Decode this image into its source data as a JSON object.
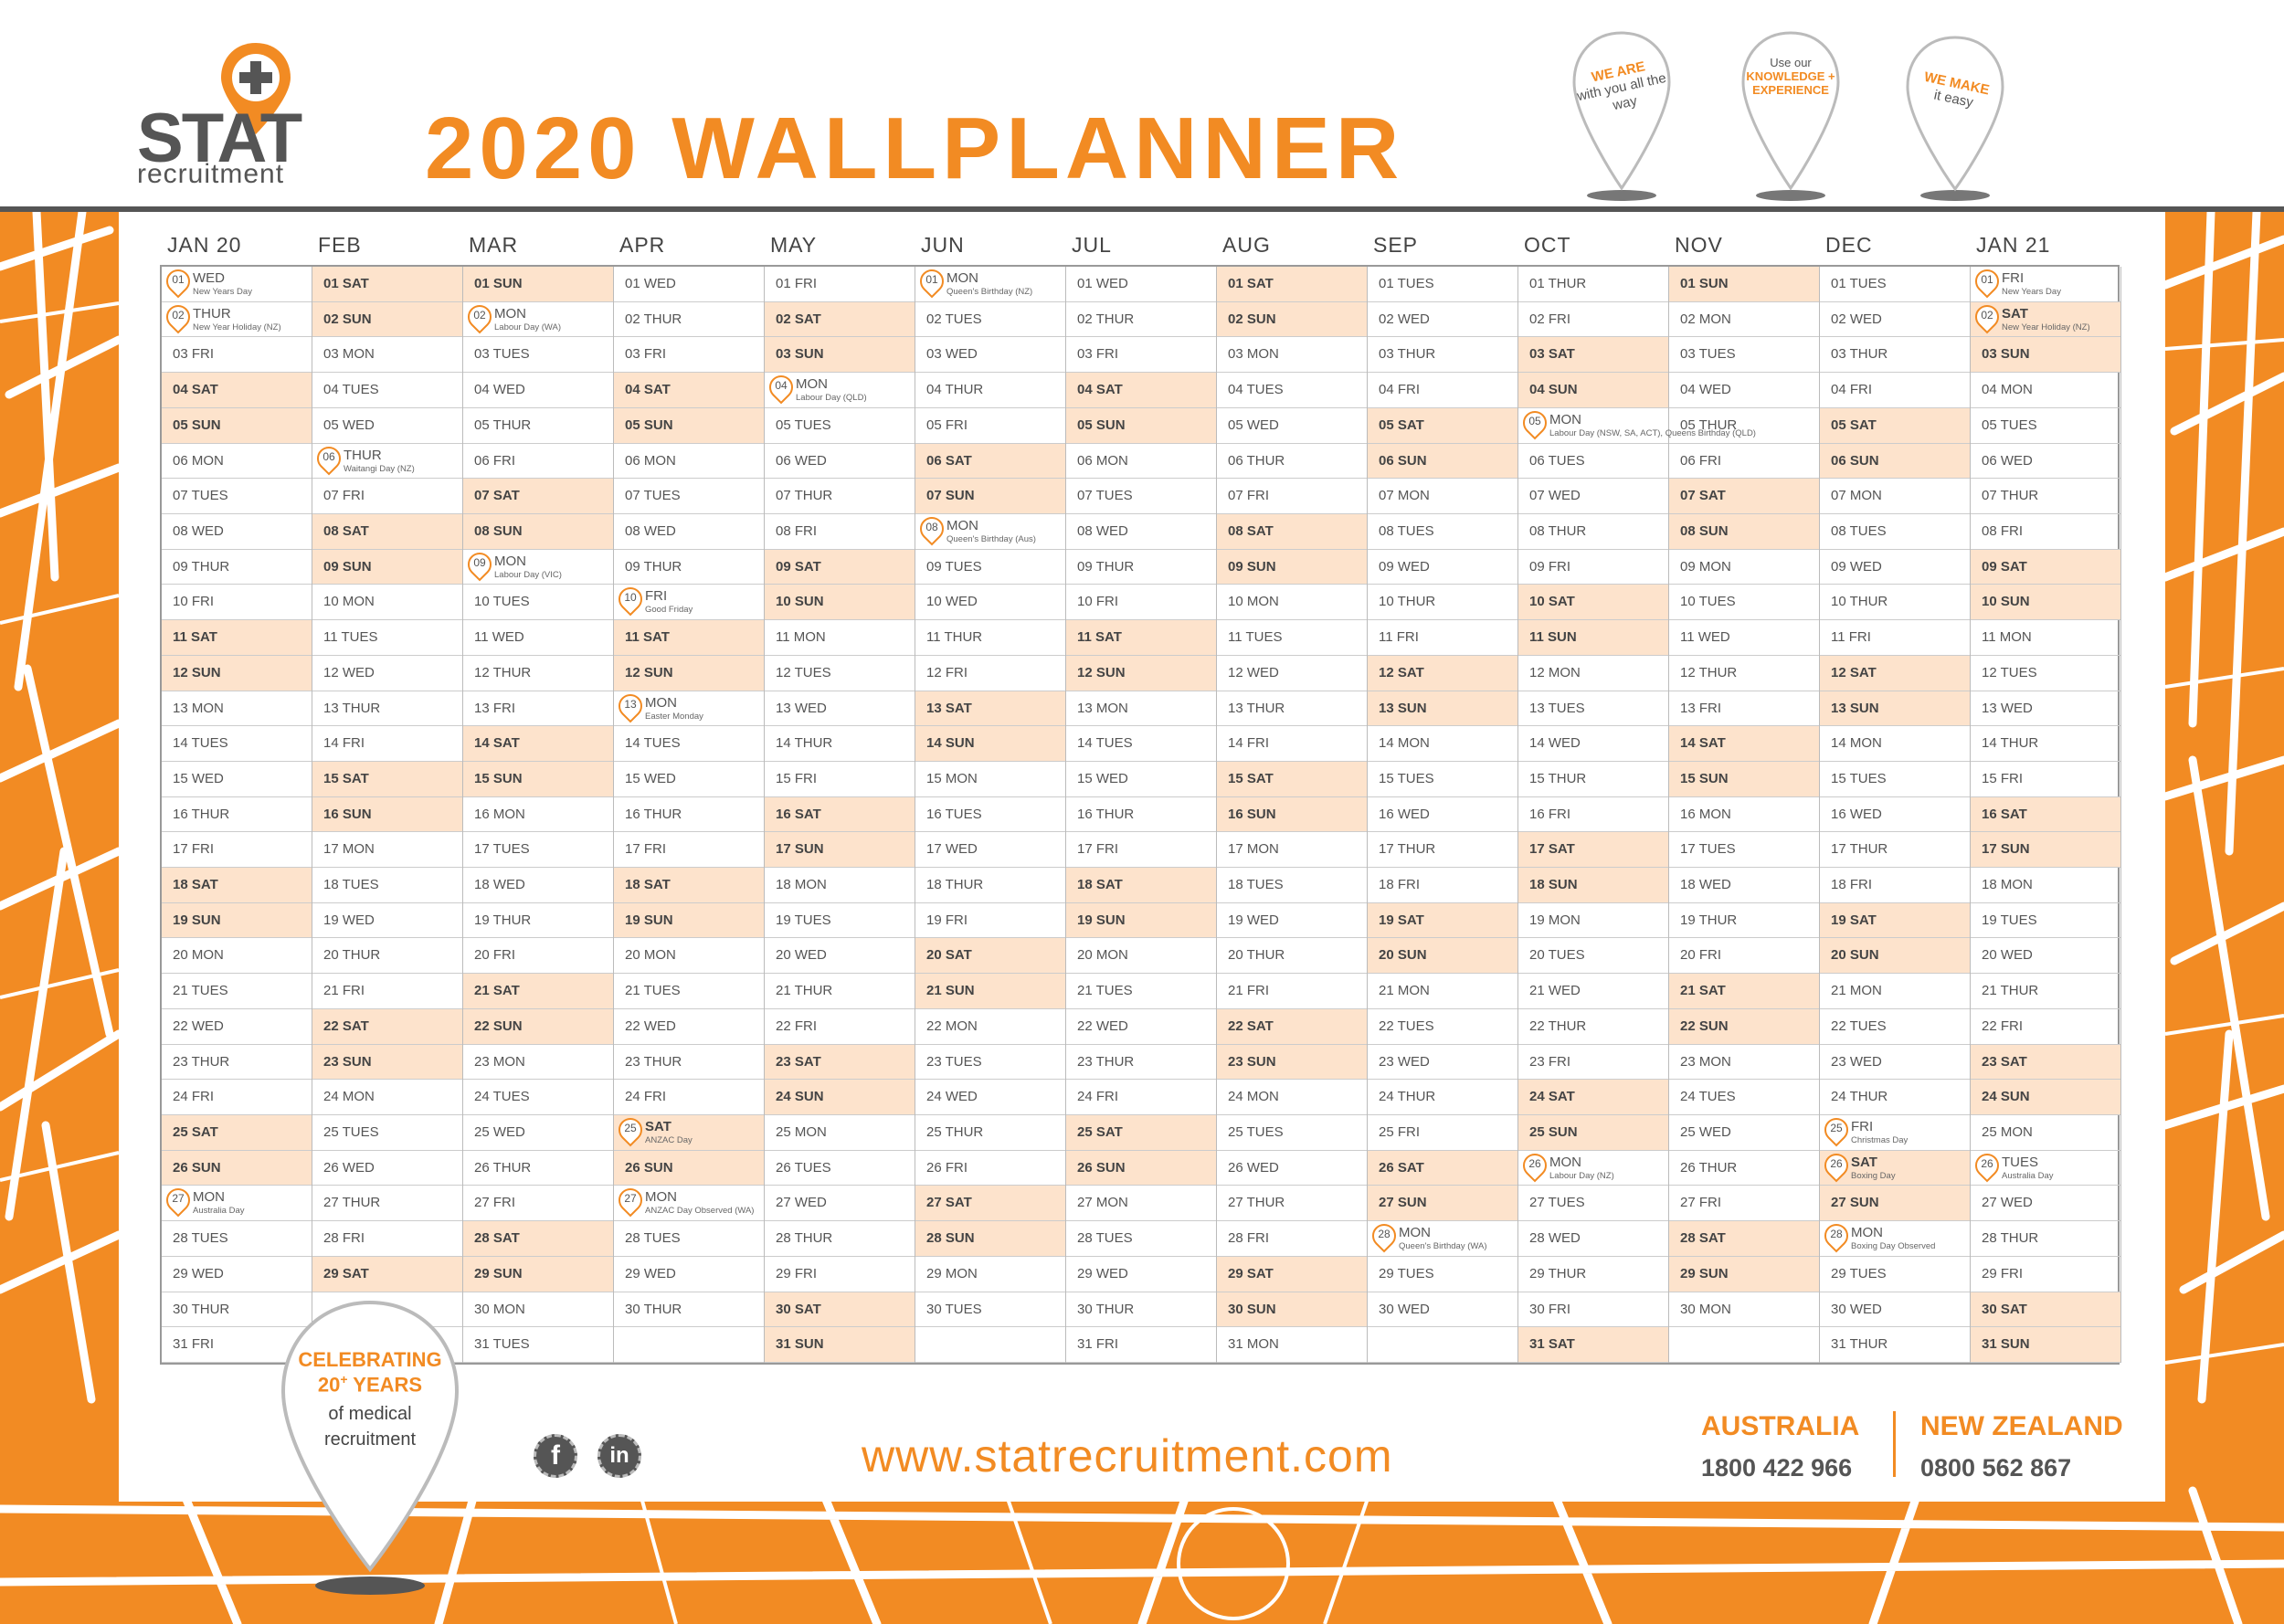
{
  "header": {
    "logo_stat": "STAT",
    "logo_recruitment": "recruitment",
    "title": "2020 WALLPLANNER",
    "pins": [
      {
        "highlight": "WE ARE",
        "text": "with you all the way"
      },
      {
        "text_top": "Use our",
        "highlight": "KNOWLEDGE + EXPERIENCE"
      },
      {
        "highlight": "WE MAKE",
        "text": "it easy"
      }
    ]
  },
  "colors": {
    "accent": "#F28B23",
    "weekend": "#FDE3CC",
    "text": "#555555"
  },
  "calendar": {
    "months": [
      {
        "label": "JAN 20",
        "start": 3,
        "days": 31,
        "holidays": {
          "1": "New Years Day",
          "2": "New Year Holiday (NZ)",
          "27": "Australia Day"
        }
      },
      {
        "label": "FEB",
        "start": 6,
        "days": 29,
        "holidays": {
          "6": "Waitangi Day (NZ)"
        }
      },
      {
        "label": "MAR",
        "start": 0,
        "days": 31,
        "holidays": {
          "2": "Labour Day (WA)",
          "9": "Labour Day (VIC)"
        }
      },
      {
        "label": "APR",
        "start": 3,
        "days": 30,
        "holidays": {
          "10": "Good Friday",
          "13": "Easter Monday",
          "25": "ANZAC Day",
          "27": "ANZAC Day Observed (WA)"
        }
      },
      {
        "label": "MAY",
        "start": 5,
        "days": 31,
        "holidays": {
          "4": "Labour Day (QLD)"
        }
      },
      {
        "label": "JUN",
        "start": 1,
        "days": 30,
        "holidays": {
          "1": "Queen's Birthday (NZ)",
          "8": "Queen's Birthday (Aus)"
        }
      },
      {
        "label": "JUL",
        "start": 3,
        "days": 31,
        "holidays": {}
      },
      {
        "label": "AUG",
        "start": 6,
        "days": 31,
        "holidays": {}
      },
      {
        "label": "SEP",
        "start": 2,
        "days": 30,
        "holidays": {
          "28": "Queen's Birthday (WA)"
        }
      },
      {
        "label": "OCT",
        "start": 4,
        "days": 31,
        "holidays": {
          "5": "Labour Day (NSW, SA, ACT), Queens Birthday (QLD)",
          "26": "Labour Day (NZ)"
        }
      },
      {
        "label": "NOV",
        "start": 0,
        "days": 30,
        "holidays": {}
      },
      {
        "label": "DEC",
        "start": 2,
        "days": 31,
        "holidays": {
          "25": "Christmas Day",
          "26": "Boxing Day",
          "28": "Boxing Day Observed"
        }
      },
      {
        "label": "JAN 21",
        "start": 5,
        "days": 31,
        "holidays": {
          "1": "New Years Day",
          "2": "New Year Holiday (NZ)",
          "26": "Australia Day"
        }
      }
    ],
    "weekday_names": [
      "SUN",
      "MON",
      "TUES",
      "WED",
      "THUR",
      "FRI",
      "SAT"
    ]
  },
  "footer": {
    "url": "www.statrecruitment.com",
    "celebrate_line1": "CELEBRATING",
    "celebrate_line2": "20",
    "celebrate_plus": "+",
    "celebrate_line2b": "YEARS",
    "celebrate_line3": "of medical",
    "celebrate_line4": "recruitment",
    "australia_label": "AUSTRALIA",
    "australia_phone": "1800 422 966",
    "nz_label": "NEW ZEALAND",
    "nz_phone": "0800 562 867",
    "social": [
      "facebook-icon",
      "linkedin-icon"
    ]
  }
}
